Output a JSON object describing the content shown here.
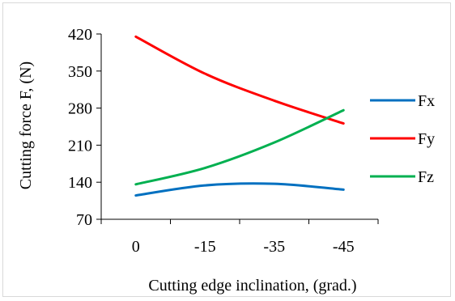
{
  "chart_data": {
    "type": "line",
    "title": "",
    "xlabel": "Cutting edge inclination, (grad.)",
    "ylabel": "Cutting force F, (N)",
    "categories": [
      "0",
      "-15",
      "-35",
      "-45"
    ],
    "ylim": [
      70,
      420
    ],
    "yticks": [
      70,
      140,
      210,
      280,
      350,
      420
    ],
    "grid": false,
    "legend": "right",
    "series": [
      {
        "name": "Fx",
        "color": "#0070c0",
        "values": [
          115,
          134,
          137,
          126
        ]
      },
      {
        "name": "Fy",
        "color": "#ff0000",
        "values": [
          415,
          345,
          294,
          251
        ]
      },
      {
        "name": "Fz",
        "color": "#00b050",
        "values": [
          136,
          167,
          215,
          276
        ]
      }
    ]
  }
}
